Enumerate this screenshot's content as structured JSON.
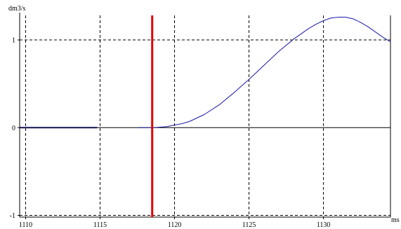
{
  "chart_data": {
    "type": "line",
    "xlabel": "ms",
    "ylabel": "dm3/s",
    "xlim": [
      1109.6,
      1134.5
    ],
    "ylim": [
      -1.02,
      1.28
    ],
    "grid": true,
    "x_ticks": [
      1110,
      1115,
      1120,
      1125,
      1130
    ],
    "x_tick_labels": [
      "1110",
      "1115",
      "1120",
      "1125",
      "1130"
    ],
    "y_ticks": [
      -1,
      0,
      1
    ],
    "y_tick_labels": [
      "-1",
      "0",
      "1"
    ],
    "series": [
      {
        "color": "#1a1aa6",
        "segments": [
          {
            "x": [
              1109.6,
              1114.8
            ],
            "y": [
              0.0,
              0.0
            ]
          },
          {
            "x": [
              1117.6,
              1118.6,
              1119.0,
              1119.5,
              1120.0,
              1120.5,
              1121.0,
              1122.0,
              1123.0,
              1124.0,
              1125.0,
              1126.0,
              1127.0,
              1128.0,
              1129.0,
              1129.5,
              1130.0,
              1130.5,
              1131.0,
              1131.5,
              1132.0,
              1132.5,
              1133.0,
              1133.5,
              1134.0,
              1134.5
            ],
            "y": [
              0.0,
              0.0,
              0.005,
              0.012,
              0.03,
              0.045,
              0.07,
              0.15,
              0.26,
              0.4,
              0.55,
              0.71,
              0.87,
              1.01,
              1.13,
              1.18,
              1.22,
              1.25,
              1.26,
              1.26,
              1.24,
              1.2,
              1.15,
              1.09,
              1.03,
              0.98
            ]
          }
        ]
      }
    ],
    "cursor": {
      "x": 1118.5,
      "color": "#e00000"
    }
  }
}
